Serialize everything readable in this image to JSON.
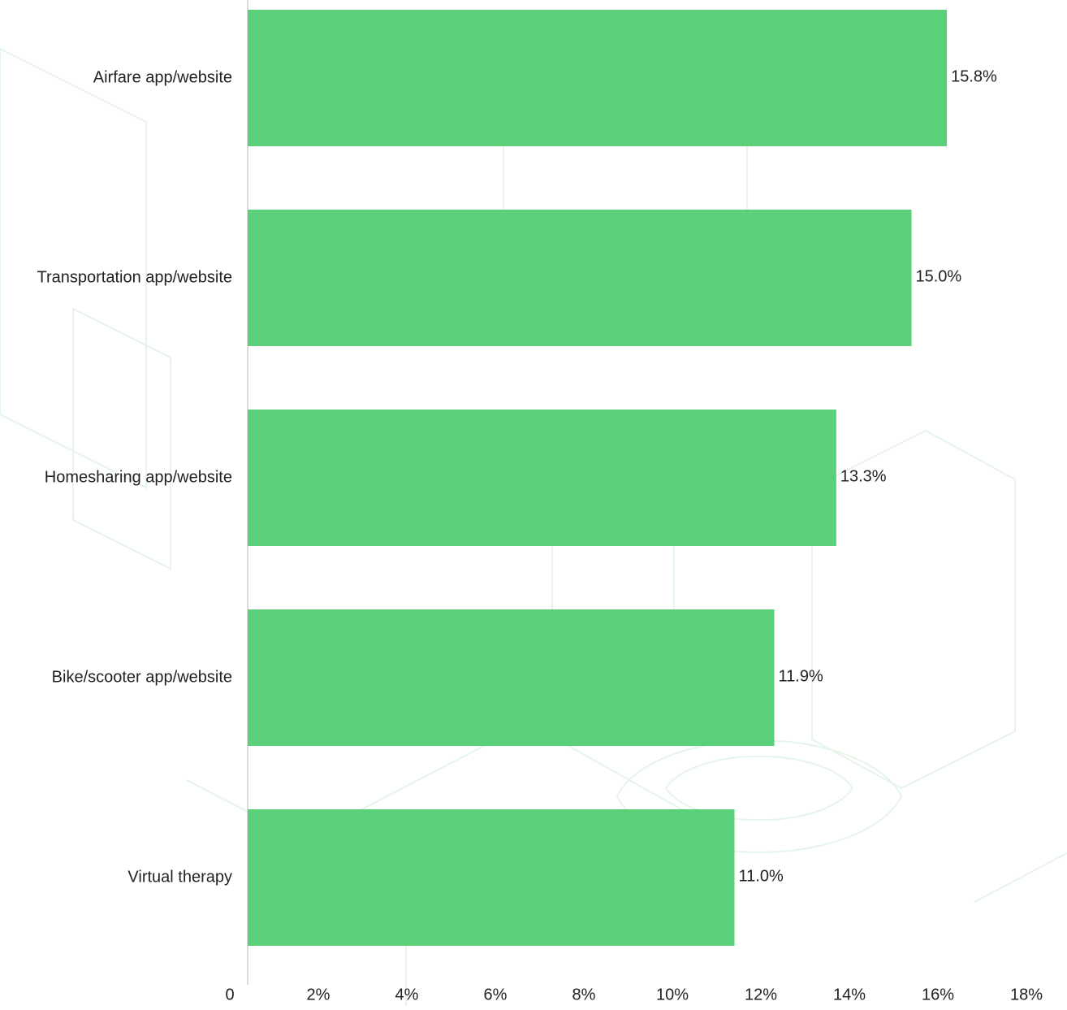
{
  "chart_data": {
    "type": "bar",
    "orientation": "horizontal",
    "categories": [
      "Airfare app/website",
      "Transportation app/website",
      "Homesharing app/website",
      "Bike/scooter app/website",
      "Virtual therapy"
    ],
    "values": [
      15.8,
      15.0,
      13.3,
      11.9,
      11.0
    ],
    "value_labels": [
      "15.8%",
      "15.0%",
      "13.3%",
      "11.9%",
      "11.0%"
    ],
    "color": "#5ad07a",
    "xlim": [
      0,
      18
    ],
    "xticks": [
      0,
      {
        "value": 2,
        "label": "2%"
      },
      {
        "value": 4,
        "label": "4%"
      },
      {
        "value": 6,
        "label": "6%"
      },
      {
        "value": 8,
        "label": "8%"
      },
      {
        "value": 10,
        "label": "10%"
      },
      {
        "value": 12,
        "label": "12%"
      },
      {
        "value": 14,
        "label": "14%"
      },
      {
        "value": 16,
        "label": "16%"
      },
      {
        "value": 18,
        "label": "18%"
      }
    ]
  }
}
